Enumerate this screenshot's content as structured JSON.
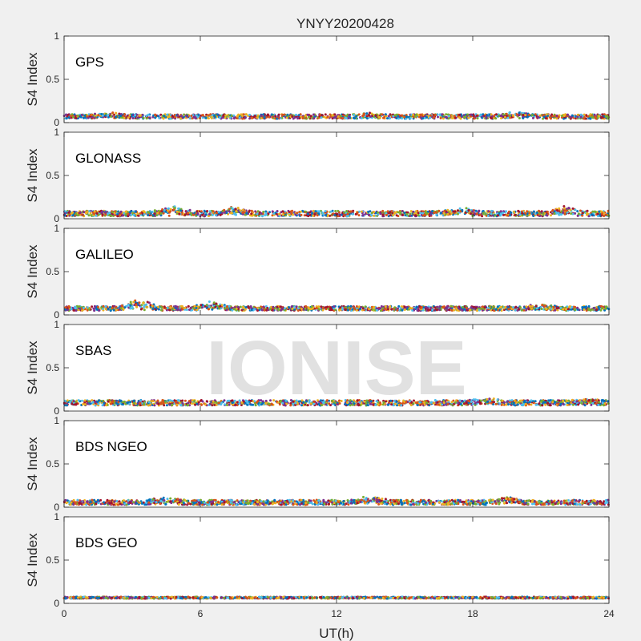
{
  "chart_data": {
    "type": "scatter",
    "title": "YNYY20200428",
    "xlabel": "UT(h)",
    "ylabel": "S4 Index",
    "xlim": [
      0,
      24
    ],
    "ylim": [
      0,
      1
    ],
    "xticks": [
      0,
      6,
      12,
      18,
      24
    ],
    "yticks": [
      0,
      0.5,
      1
    ],
    "xtick_labels": [
      "0",
      "6",
      "12",
      "18",
      "24"
    ],
    "ytick_labels": [
      "0",
      "0.5",
      "1"
    ],
    "grid": false,
    "watermark": "IONISE",
    "series_colors": [
      "#0072BD",
      "#D95319",
      "#EDB120",
      "#7E2F8E",
      "#77AC30",
      "#4DBEEE",
      "#A2142F"
    ],
    "panels": [
      {
        "label": "GPS",
        "seed": 11,
        "base": 0.07,
        "noise": 0.025,
        "bumps": [
          [
            2.0,
            0.03
          ],
          [
            13.5,
            0.02
          ],
          [
            20.0,
            0.04
          ]
        ]
      },
      {
        "label": "GLONASS",
        "seed": 23,
        "base": 0.06,
        "noise": 0.03,
        "bumps": [
          [
            4.8,
            0.07
          ],
          [
            7.5,
            0.06
          ],
          [
            17.5,
            0.05
          ],
          [
            22.0,
            0.06
          ]
        ]
      },
      {
        "label": "GALILEO",
        "seed": 37,
        "base": 0.075,
        "noise": 0.025,
        "bumps": [
          [
            3.3,
            0.09
          ],
          [
            6.4,
            0.06
          ],
          [
            21.0,
            0.03
          ]
        ]
      },
      {
        "label": "SBAS",
        "seed": 41,
        "base": 0.095,
        "noise": 0.03,
        "bumps": [
          [
            18.5,
            0.04
          ],
          [
            23.0,
            0.02
          ]
        ]
      },
      {
        "label": "BDS NGEO",
        "seed": 53,
        "base": 0.055,
        "noise": 0.028,
        "bumps": [
          [
            4.5,
            0.05
          ],
          [
            13.5,
            0.06
          ],
          [
            19.5,
            0.05
          ]
        ]
      },
      {
        "label": "BDS GEO",
        "seed": 67,
        "base": 0.065,
        "noise": 0.01,
        "bumps": []
      }
    ]
  }
}
